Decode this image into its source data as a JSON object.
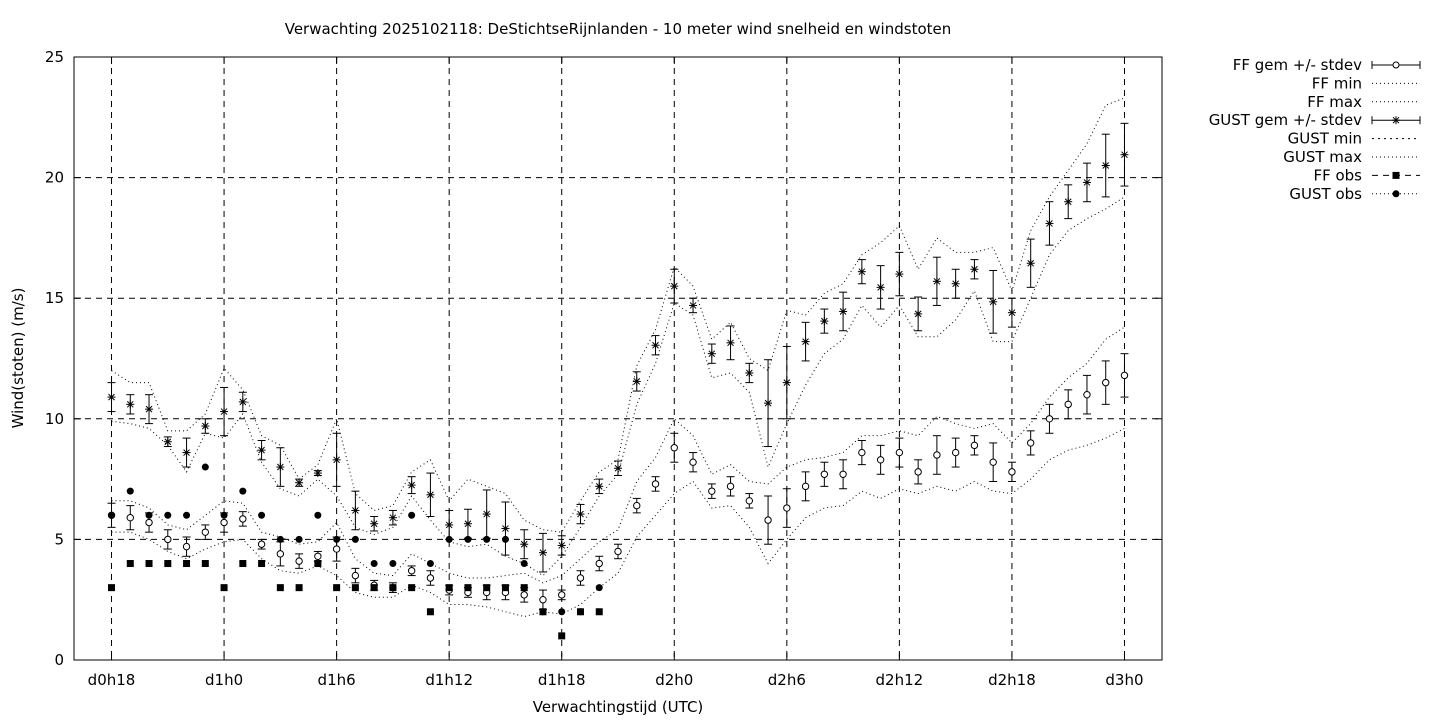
{
  "chart_data": {
    "type": "scatter",
    "title": "Verwachting 2025102118: DeStichtseRijnlanden - 10 meter wind snelheid en windstoten",
    "xlabel": "Verwachtingstijd (UTC)",
    "ylabel": "Wind(stoten) (m/s)",
    "x_unit": "hours since d0h18",
    "xlim": [
      -2,
      56
    ],
    "ylim": [
      0,
      25
    ],
    "grid": true,
    "legend_position": "top-right, outside plot",
    "x_ticks": [
      {
        "x": 0,
        "label": "d0h18"
      },
      {
        "x": 6,
        "label": "d1h0"
      },
      {
        "x": 12,
        "label": "d1h6"
      },
      {
        "x": 18,
        "label": "d1h12"
      },
      {
        "x": 24,
        "label": "d1h18"
      },
      {
        "x": 30,
        "label": "d2h0"
      },
      {
        "x": 36,
        "label": "d2h6"
      },
      {
        "x": 42,
        "label": "d2h12"
      },
      {
        "x": 48,
        "label": "d2h18"
      },
      {
        "x": 54,
        "label": "d3h0"
      }
    ],
    "y_ticks": [
      0,
      5,
      10,
      15,
      20,
      25
    ],
    "legend": [
      "FF gem +/- stdev",
      "FF min",
      "FF max",
      "GUST gem +/- stdev",
      "GUST min",
      "GUST max",
      "FF obs",
      "GUST obs"
    ],
    "ff_gem": {
      "x": [
        0,
        1,
        2,
        3,
        4,
        5,
        6,
        7,
        8,
        9,
        10,
        11,
        12,
        13,
        14,
        15,
        16,
        17,
        18,
        19,
        20,
        21,
        22,
        23,
        24,
        25,
        26,
        27,
        28,
        29,
        30,
        31,
        32,
        33,
        34,
        35,
        36,
        37,
        38,
        39,
        40,
        41,
        42,
        43,
        44,
        45,
        46,
        47,
        48,
        49,
        50,
        51,
        52,
        53,
        54
      ],
      "mean": [
        6.0,
        5.9,
        5.7,
        5.0,
        4.7,
        5.3,
        5.7,
        5.85,
        4.8,
        4.4,
        4.1,
        4.3,
        4.6,
        3.5,
        3.1,
        3.0,
        3.7,
        3.4,
        2.9,
        2.8,
        2.8,
        2.8,
        2.7,
        2.5,
        2.7,
        3.4,
        4.0,
        4.5,
        6.4,
        7.3,
        8.8,
        8.2,
        7.0,
        7.2,
        6.6,
        5.8,
        6.3,
        7.2,
        7.7,
        7.7,
        8.6,
        8.3,
        8.6,
        7.8,
        8.5,
        8.6,
        8.9,
        8.2,
        7.8,
        9.0,
        10.0,
        10.6,
        11.0,
        11.5,
        11.8
      ],
      "stdev": [
        0.5,
        0.5,
        0.4,
        0.4,
        0.4,
        0.3,
        0.4,
        0.3,
        0.2,
        0.5,
        0.3,
        0.2,
        0.5,
        0.3,
        0.2,
        0.2,
        0.2,
        0.3,
        0.2,
        0.2,
        0.3,
        0.3,
        0.3,
        0.4,
        0.2,
        0.3,
        0.3,
        0.3,
        0.3,
        0.3,
        0.6,
        0.4,
        0.3,
        0.4,
        0.3,
        1.0,
        0.8,
        0.6,
        0.5,
        0.6,
        0.5,
        0.6,
        0.6,
        0.5,
        0.8,
        0.6,
        0.4,
        0.8,
        0.4,
        0.5,
        0.6,
        0.6,
        0.8,
        0.9,
        0.9
      ]
    },
    "ff_min": {
      "x": [
        0,
        1,
        2,
        3,
        4,
        5,
        6,
        7,
        8,
        9,
        10,
        11,
        12,
        13,
        14,
        15,
        16,
        17,
        18,
        19,
        20,
        21,
        22,
        23,
        24,
        25,
        26,
        27,
        28,
        29,
        30,
        31,
        32,
        33,
        34,
        35,
        36,
        37,
        38,
        39,
        40,
        41,
        42,
        43,
        44,
        45,
        46,
        47,
        48,
        49,
        50,
        51,
        52,
        53,
        54
      ],
      "values": [
        5.3,
        5.3,
        5.0,
        4.5,
        4.2,
        4.6,
        4.9,
        5.0,
        4.2,
        3.7,
        3.6,
        3.9,
        3.5,
        2.8,
        2.6,
        2.6,
        3.1,
        2.8,
        2.3,
        2.3,
        2.2,
        2.0,
        1.8,
        2.0,
        1.9,
        2.3,
        3.0,
        3.6,
        5.1,
        6.0,
        6.9,
        7.4,
        6.3,
        6.4,
        5.5,
        4.0,
        5.0,
        5.9,
        6.3,
        6.4,
        7.0,
        6.7,
        7.1,
        6.9,
        7.2,
        7.0,
        7.4,
        7.0,
        6.9,
        7.5,
        8.3,
        8.7,
        8.9,
        9.2,
        9.6
      ]
    },
    "ff_max": {
      "x": [
        0,
        1,
        2,
        3,
        4,
        5,
        6,
        7,
        8,
        9,
        10,
        11,
        12,
        13,
        14,
        15,
        16,
        17,
        18,
        19,
        20,
        21,
        22,
        23,
        24,
        25,
        26,
        27,
        28,
        29,
        30,
        31,
        32,
        33,
        34,
        35,
        36,
        37,
        38,
        39,
        40,
        41,
        42,
        43,
        44,
        45,
        46,
        47,
        48,
        49,
        50,
        51,
        52,
        53,
        54
      ],
      "values": [
        6.6,
        6.6,
        6.3,
        5.6,
        5.4,
        6.0,
        6.6,
        6.5,
        5.3,
        5.1,
        4.8,
        4.9,
        5.7,
        4.2,
        3.6,
        3.5,
        4.4,
        4.0,
        3.6,
        3.4,
        3.4,
        3.5,
        3.6,
        3.2,
        3.5,
        4.2,
        4.9,
        5.4,
        7.4,
        8.4,
        10.0,
        9.3,
        7.7,
        8.1,
        7.4,
        7.3,
        8.0,
        8.3,
        8.4,
        8.6,
        9.3,
        9.3,
        9.5,
        9.3,
        10.1,
        9.8,
        9.6,
        9.8,
        9.0,
        9.8,
        10.9,
        11.7,
        12.3,
        13.3,
        13.8
      ]
    },
    "gust_gem": {
      "x": [
        0,
        1,
        2,
        3,
        4,
        5,
        6,
        7,
        8,
        9,
        10,
        11,
        12,
        13,
        14,
        15,
        16,
        17,
        18,
        19,
        20,
        21,
        22,
        23,
        24,
        25,
        26,
        27,
        28,
        29,
        30,
        31,
        32,
        33,
        34,
        35,
        36,
        37,
        38,
        39,
        40,
        41,
        42,
        43,
        44,
        45,
        46,
        47,
        48,
        49,
        50,
        51,
        52,
        53,
        54
      ],
      "mean": [
        10.9,
        10.6,
        10.4,
        9.05,
        8.6,
        9.7,
        10.3,
        10.7,
        8.7,
        8.0,
        7.35,
        7.75,
        8.3,
        6.2,
        5.65,
        5.9,
        7.25,
        6.85,
        5.6,
        5.65,
        6.05,
        5.45,
        4.8,
        4.45,
        4.75,
        6.05,
        7.2,
        7.95,
        11.55,
        13.05,
        15.5,
        14.7,
        12.7,
        13.15,
        11.9,
        10.65,
        11.5,
        13.2,
        14.05,
        14.45,
        16.1,
        15.45,
        16.0,
        14.35,
        15.7,
        15.6,
        16.2,
        14.85,
        14.4,
        16.45,
        18.1,
        19.0,
        19.8,
        20.5,
        20.95
      ]
    },
    "gust_stdev": [
      0.6,
      0.4,
      0.6,
      0.2,
      0.6,
      0.3,
      1.0,
      0.4,
      0.4,
      0.8,
      0.15,
      0.1,
      1.1,
      0.8,
      0.3,
      0.3,
      0.35,
      0.9,
      0.6,
      0.6,
      1.0,
      1.1,
      0.6,
      0.8,
      0.4,
      0.4,
      0.3,
      0.3,
      0.4,
      0.4,
      0.7,
      0.3,
      0.4,
      0.7,
      0.4,
      1.8,
      1.5,
      0.8,
      0.5,
      0.8,
      0.5,
      0.9,
      0.9,
      0.7,
      1.0,
      0.6,
      0.4,
      1.3,
      0.6,
      1.0,
      0.9,
      0.7,
      0.8,
      1.3,
      1.3
    ],
    "gust_min": {
      "x": [
        0,
        1,
        2,
        3,
        4,
        5,
        6,
        7,
        8,
        9,
        10,
        11,
        12,
        13,
        14,
        15,
        16,
        17,
        18,
        19,
        20,
        21,
        22,
        23,
        24,
        25,
        26,
        27,
        28,
        29,
        30,
        31,
        32,
        33,
        34,
        35,
        36,
        37,
        38,
        39,
        40,
        41,
        42,
        43,
        44,
        45,
        46,
        47,
        48,
        49,
        50,
        51,
        52,
        53,
        54
      ],
      "values": [
        9.9,
        9.8,
        9.6,
        8.9,
        7.8,
        9.4,
        9.2,
        10.2,
        8.2,
        7.1,
        6.8,
        7.5,
        6.8,
        5.5,
        5.2,
        5.5,
        6.8,
        5.8,
        4.9,
        4.7,
        4.8,
        4.3,
        4.0,
        3.5,
        4.3,
        5.5,
        6.8,
        7.7,
        10.6,
        12.3,
        14.8,
        14.3,
        11.7,
        11.9,
        11.1,
        8.0,
        9.8,
        11.4,
        12.7,
        13.3,
        14.7,
        13.8,
        14.7,
        13.4,
        13.4,
        14.1,
        15.3,
        13.2,
        13.2,
        15.0,
        16.8,
        17.8,
        18.3,
        18.7,
        19.2
      ]
    },
    "gust_max": {
      "x": [
        0,
        1,
        2,
        3,
        4,
        5,
        6,
        7,
        8,
        9,
        10,
        11,
        12,
        13,
        14,
        15,
        16,
        17,
        18,
        19,
        20,
        21,
        22,
        23,
        24,
        25,
        26,
        27,
        28,
        29,
        30,
        31,
        32,
        33,
        34,
        35,
        36,
        37,
        38,
        39,
        40,
        41,
        42,
        43,
        44,
        45,
        46,
        47,
        48,
        49,
        50,
        51,
        52,
        53,
        54
      ],
      "values": [
        12.0,
        11.5,
        11.5,
        9.5,
        9.5,
        10.2,
        12.1,
        11.2,
        9.3,
        8.9,
        7.5,
        8.1,
        10.0,
        6.9,
        6.2,
        6.4,
        7.8,
        8.3,
        6.6,
        7.5,
        7.2,
        6.9,
        5.8,
        5.4,
        5.3,
        6.6,
        7.8,
        8.3,
        12.2,
        13.7,
        16.3,
        15.5,
        13.3,
        14.0,
        12.5,
        12.0,
        14.5,
        14.3,
        15.2,
        15.6,
        16.8,
        17.3,
        18.0,
        16.2,
        17.5,
        16.9,
        16.9,
        17.1,
        15.3,
        17.8,
        19.2,
        20.3,
        21.4,
        23.0,
        23.3
      ]
    },
    "ff_obs": {
      "x": [
        0,
        1,
        2,
        3,
        4,
        5,
        6,
        7,
        8,
        9,
        10,
        11,
        12,
        13,
        14,
        15,
        16,
        17,
        18,
        19,
        20,
        21,
        22,
        23,
        24,
        25,
        26
      ],
      "values": [
        3,
        4,
        4,
        4,
        4,
        4,
        3,
        4,
        4,
        3,
        3,
        4,
        3,
        3,
        3,
        3,
        3,
        2,
        3,
        3,
        3,
        3,
        3,
        2,
        1,
        2,
        2
      ]
    },
    "gust_obs": {
      "x": [
        0,
        1,
        2,
        3,
        4,
        5,
        6,
        7,
        8,
        9,
        10,
        11,
        12,
        13,
        14,
        15,
        16,
        17,
        18,
        19,
        20,
        21,
        22,
        23,
        24,
        25,
        26
      ],
      "values": [
        6,
        7,
        6,
        6,
        6,
        8,
        6,
        7,
        6,
        5,
        5,
        6,
        5,
        5,
        4,
        4,
        6,
        4,
        5,
        5,
        5,
        5,
        4,
        2,
        2,
        2,
        3
      ]
    }
  }
}
